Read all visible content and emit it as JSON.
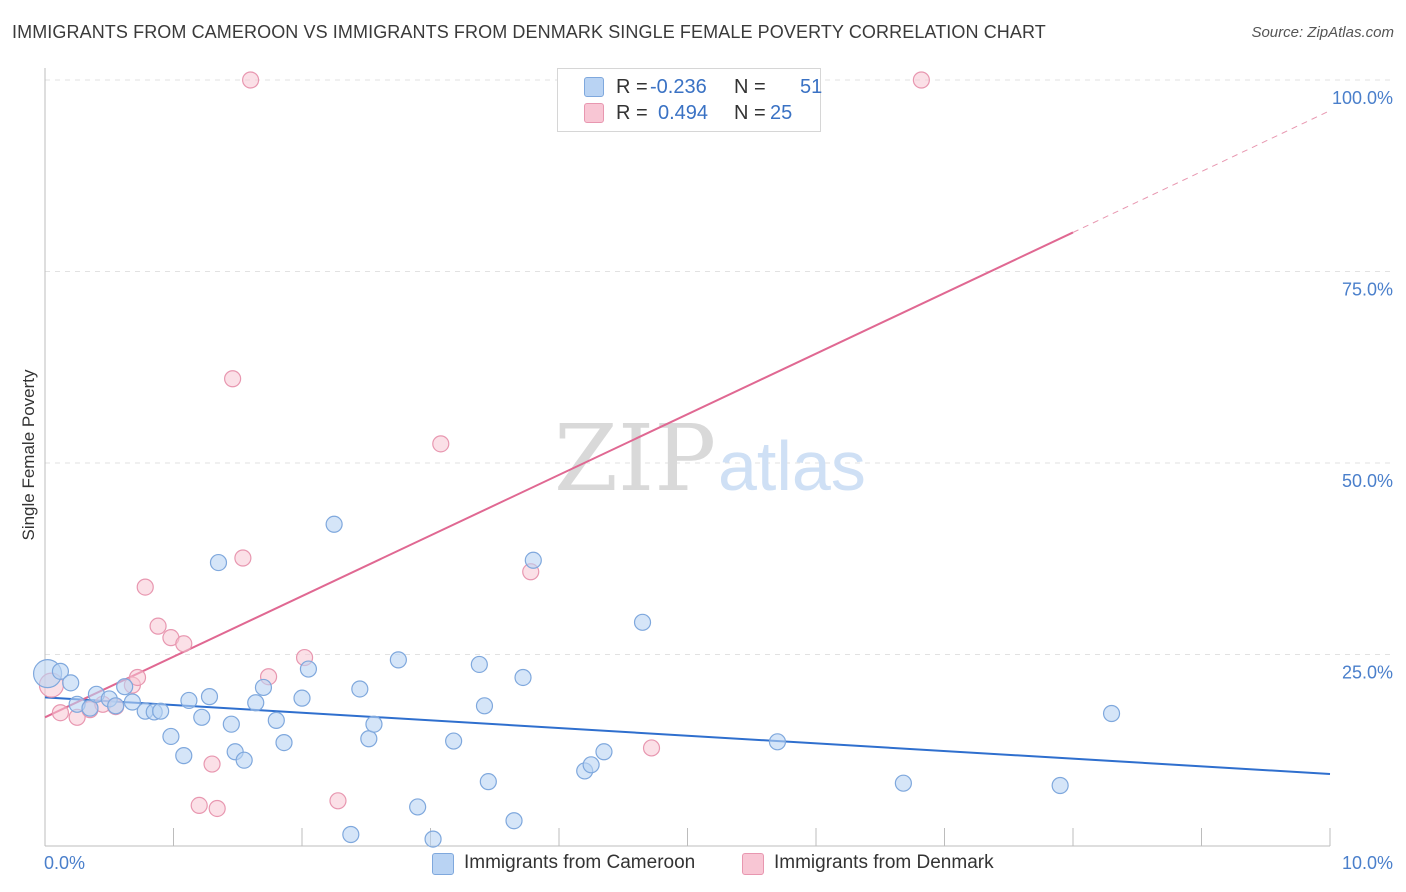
{
  "title": "IMMIGRANTS FROM CAMEROON VS IMMIGRANTS FROM DENMARK SINGLE FEMALE POVERTY CORRELATION CHART",
  "source": "Source: ZipAtlas.com",
  "watermark": {
    "zip": "ZIP",
    "atlas": "atlas"
  },
  "colors": {
    "cameroon_fill": "#b9d3f3",
    "cameroon_stroke": "#7fa8dd",
    "cameroon_line": "#2f6fce",
    "denmark_fill": "#f8c6d4",
    "denmark_stroke": "#e897b0",
    "denmark_line": "#e06892",
    "tick_text": "#4a7fcb",
    "grid": "#e2e2e2"
  },
  "legend": {
    "rows": [
      {
        "r_label": "R =",
        "r_value": "-0.236",
        "n_label": "N =",
        "n_value": "51"
      },
      {
        "r_label": "R =",
        "r_value": "0.494",
        "n_label": "N =",
        "n_value": "25"
      }
    ]
  },
  "bottom_legend": {
    "cameroon": "Immigrants from Cameroon",
    "denmark": "Immigrants from Denmark"
  },
  "chart_data": {
    "type": "scatter",
    "title": "IMMIGRANTS FROM CAMEROON VS IMMIGRANTS FROM DENMARK SINGLE FEMALE POVERTY CORRELATION CHART",
    "xlabel": "",
    "ylabel": "Single Female Poverty",
    "xlim": [
      0,
      10
    ],
    "ylim": [
      0,
      100
    ],
    "x_tick_labels": [
      "0.0%",
      "10.0%"
    ],
    "y_ticks": [
      25,
      50,
      75,
      100
    ],
    "y_tick_labels": [
      "25.0%",
      "50.0%",
      "75.0%",
      "100.0%"
    ],
    "grid": true,
    "legend_placement": "top-center",
    "series": [
      {
        "name": "Immigrants from Cameroon",
        "r": -0.236,
        "n": 51,
        "trend": {
          "x": [
            0,
            10
          ],
          "y": [
            19.4,
            9.4
          ]
        },
        "points": [
          [
            0.02,
            22.5
          ],
          [
            0.12,
            22.8
          ],
          [
            0.2,
            21.3
          ],
          [
            0.25,
            18.5
          ],
          [
            0.35,
            18.0
          ],
          [
            0.4,
            19.8
          ],
          [
            0.5,
            19.2
          ],
          [
            0.55,
            18.3
          ],
          [
            0.62,
            20.8
          ],
          [
            0.68,
            18.8
          ],
          [
            0.78,
            17.6
          ],
          [
            0.85,
            17.5
          ],
          [
            0.9,
            17.6
          ],
          [
            0.98,
            14.3
          ],
          [
            1.08,
            11.8
          ],
          [
            1.12,
            19.0
          ],
          [
            1.22,
            16.8
          ],
          [
            1.28,
            19.5
          ],
          [
            1.35,
            37.0
          ],
          [
            1.45,
            15.9
          ],
          [
            1.48,
            12.3
          ],
          [
            1.55,
            11.2
          ],
          [
            1.64,
            18.7
          ],
          [
            1.7,
            20.7
          ],
          [
            1.8,
            16.4
          ],
          [
            1.86,
            13.5
          ],
          [
            2.0,
            19.3
          ],
          [
            2.05,
            23.1
          ],
          [
            2.25,
            42.0
          ],
          [
            2.38,
            1.5
          ],
          [
            2.45,
            20.5
          ],
          [
            2.52,
            14.0
          ],
          [
            2.56,
            15.9
          ],
          [
            2.75,
            24.3
          ],
          [
            2.9,
            5.1
          ],
          [
            3.02,
            0.9
          ],
          [
            3.18,
            13.7
          ],
          [
            3.38,
            23.7
          ],
          [
            3.42,
            18.3
          ],
          [
            3.45,
            8.4
          ],
          [
            3.65,
            3.3
          ],
          [
            3.72,
            22.0
          ],
          [
            3.8,
            37.3
          ],
          [
            4.2,
            9.8
          ],
          [
            4.25,
            10.6
          ],
          [
            4.35,
            12.3
          ],
          [
            4.65,
            29.2
          ],
          [
            5.7,
            13.6
          ],
          [
            6.68,
            8.2
          ],
          [
            7.9,
            7.9
          ],
          [
            8.3,
            17.3
          ]
        ]
      },
      {
        "name": "Immigrants from Denmark",
        "r": 0.494,
        "n": 25,
        "trend": {
          "x": [
            0,
            8
          ],
          "y": [
            16.8,
            80.1
          ]
        },
        "trend_dashed": {
          "x": [
            8,
            10
          ],
          "y": [
            80.1,
            96.0
          ]
        },
        "points": [
          [
            0.05,
            21.0
          ],
          [
            0.12,
            17.4
          ],
          [
            0.25,
            16.8
          ],
          [
            0.35,
            17.8
          ],
          [
            0.45,
            18.5
          ],
          [
            0.55,
            18.2
          ],
          [
            0.68,
            21.0
          ],
          [
            0.72,
            22.0
          ],
          [
            0.78,
            33.8
          ],
          [
            0.88,
            28.7
          ],
          [
            0.98,
            27.2
          ],
          [
            1.08,
            26.4
          ],
          [
            1.2,
            5.3
          ],
          [
            1.3,
            10.7
          ],
          [
            1.34,
            4.9
          ],
          [
            1.46,
            61.0
          ],
          [
            1.54,
            37.6
          ],
          [
            1.6,
            100.0
          ],
          [
            1.74,
            22.1
          ],
          [
            2.02,
            24.6
          ],
          [
            2.28,
            5.9
          ],
          [
            3.08,
            52.5
          ],
          [
            3.78,
            35.8
          ],
          [
            4.72,
            12.8
          ],
          [
            6.82,
            100.0
          ]
        ]
      }
    ]
  }
}
